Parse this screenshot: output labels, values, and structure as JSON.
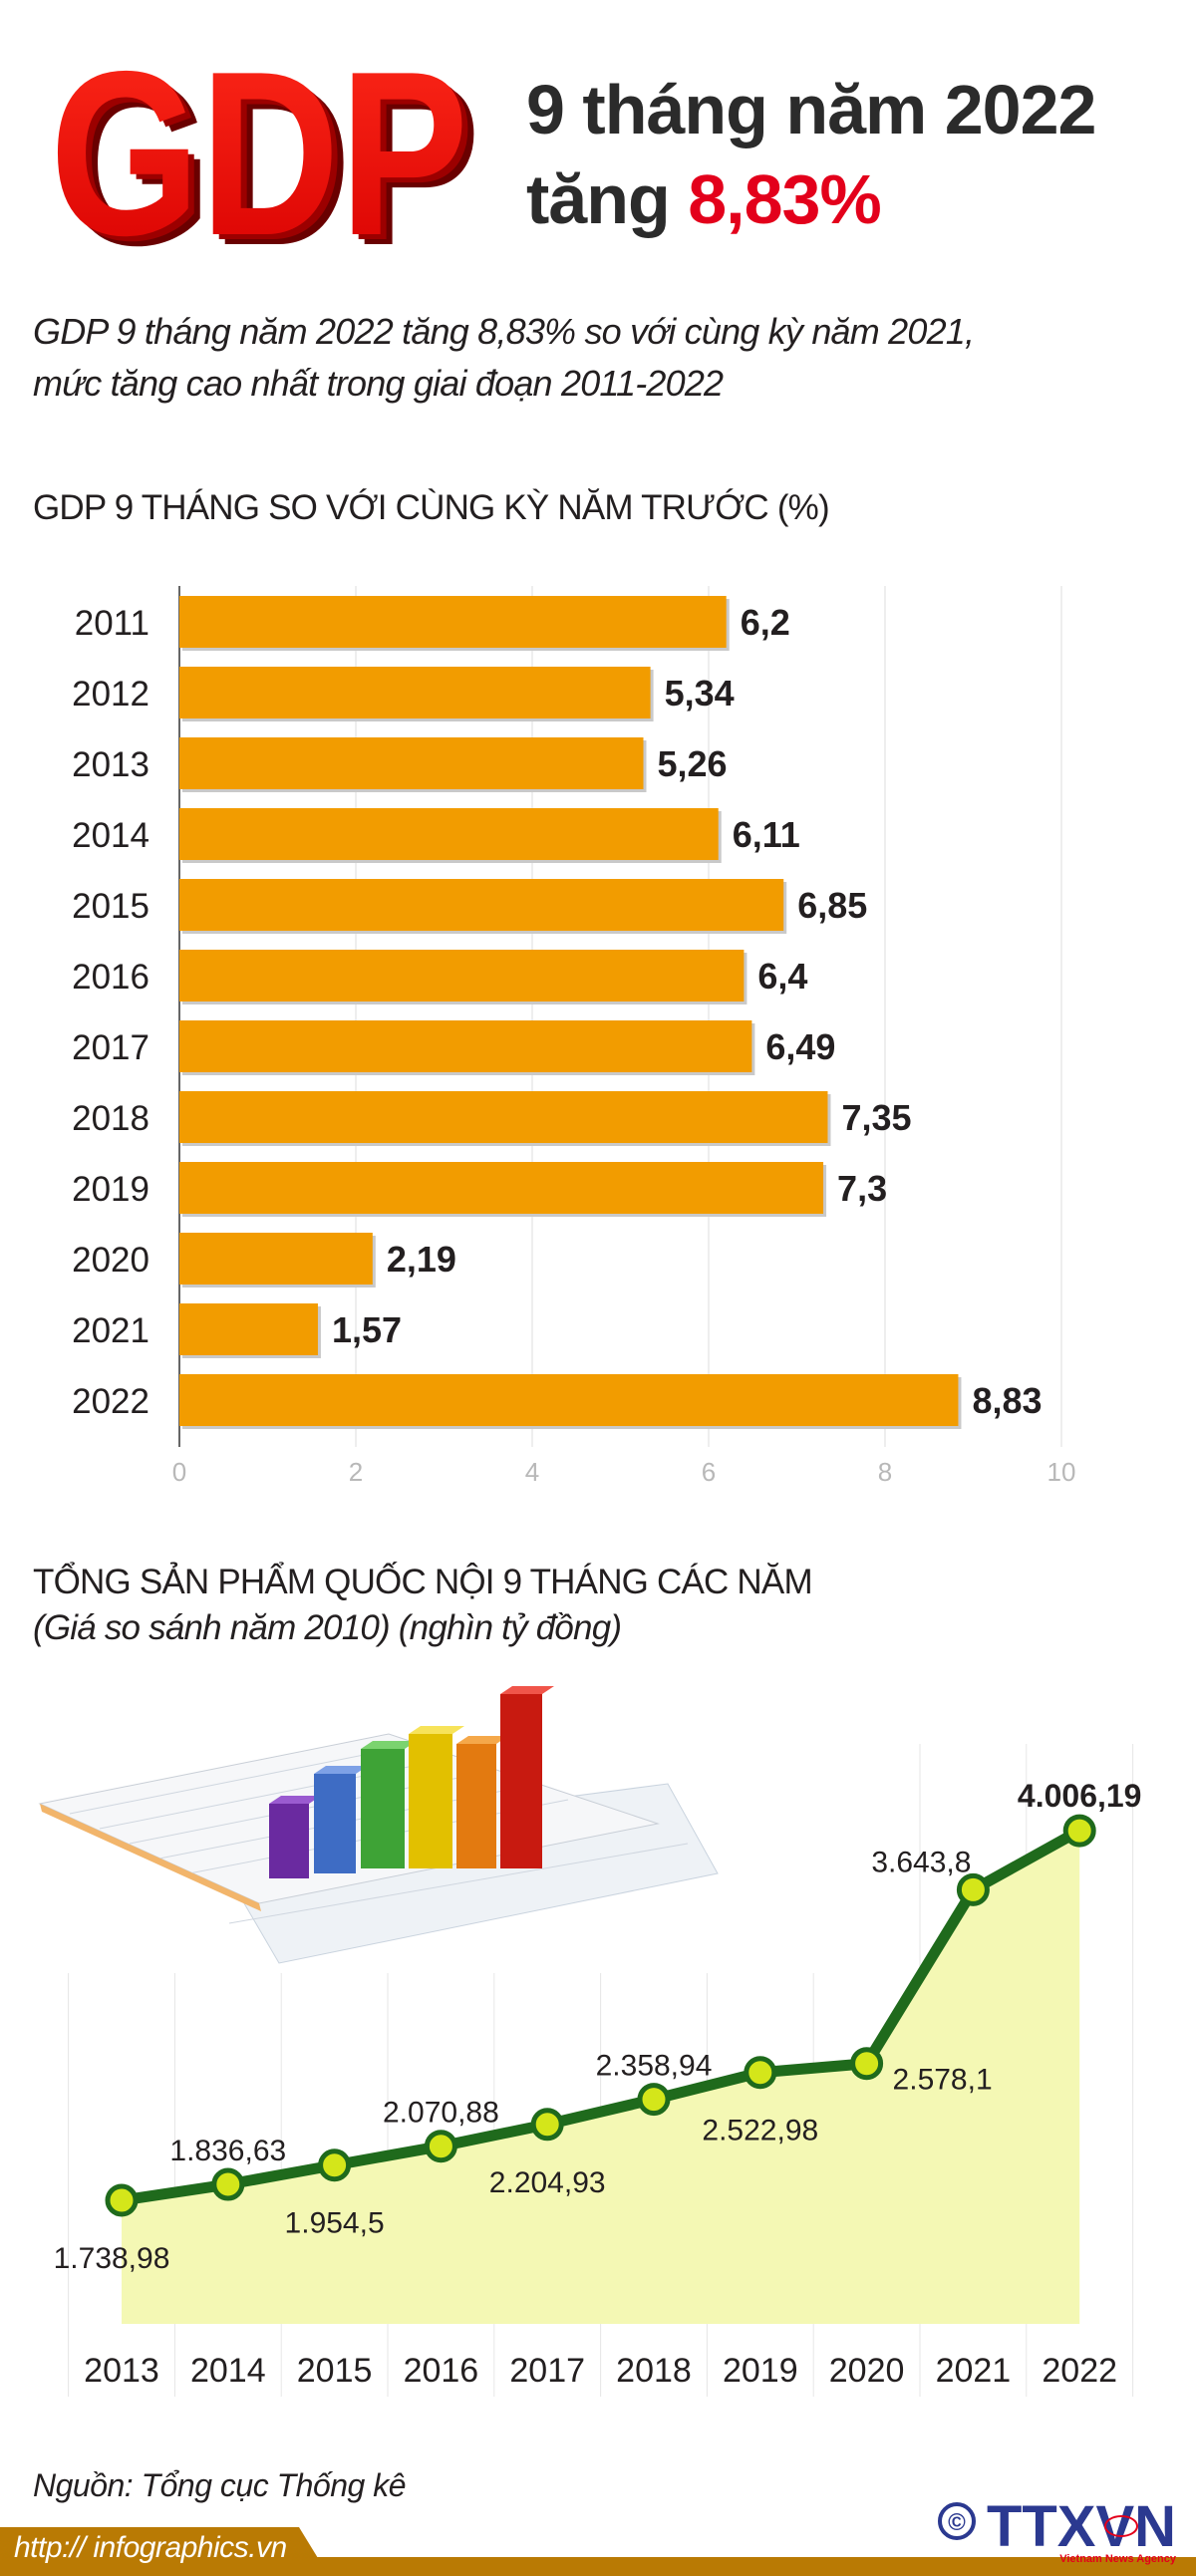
{
  "header": {
    "logo_text": "GDP",
    "title_line1": "9 tháng năm 2022",
    "title_line2_prefix": "tăng",
    "title_line2_highlight": "8,83%",
    "subtitle_line1": "GDP 9 tháng năm 2022 tăng 8,83% so với cùng kỳ năm 2021,",
    "subtitle_line2": "mức tăng cao nhất trong giai đoạn 2011-2022"
  },
  "colors": {
    "bar": "#f29c00",
    "highlight_red": "#e3001b",
    "line": "#1f6a1c",
    "marker": "#d4e61a",
    "area": "#f4f8b4",
    "footer": "#b97a04"
  },
  "chart_data": [
    {
      "type": "bar",
      "orientation": "horizontal",
      "title": "GDP 9 THÁNG SO VỚI CÙNG KỲ NĂM TRƯỚC (%)",
      "categories": [
        "2011",
        "2012",
        "2013",
        "2014",
        "2015",
        "2016",
        "2017",
        "2018",
        "2019",
        "2020",
        "2021",
        "2022"
      ],
      "values": [
        6.2,
        5.34,
        5.26,
        6.11,
        6.85,
        6.4,
        6.49,
        7.35,
        7.3,
        2.19,
        1.57,
        8.83
      ],
      "value_labels": [
        "6,2",
        "5,34",
        "5,26",
        "6,11",
        "6,85",
        "6,4",
        "6,49",
        "7,35",
        "7,3",
        "2,19",
        "1,57",
        "8,83"
      ],
      "xlim": [
        0,
        10
      ],
      "xticks": [
        "0",
        "2",
        "4",
        "6",
        "8",
        "10"
      ],
      "grid": true
    },
    {
      "type": "area",
      "title": "TỔNG SẢN PHẨM QUỐC NỘI 9 THÁNG CÁC NĂM",
      "subtitle": "(Giá so sánh năm 2010) (nghìn tỷ đồng)",
      "categories": [
        "2013",
        "2014",
        "2015",
        "2016",
        "2017",
        "2018",
        "2019",
        "2020",
        "2021",
        "2022"
      ],
      "values": [
        1738.98,
        1836.63,
        1954.5,
        2070.88,
        2204.93,
        2358.94,
        2522.98,
        2578.1,
        3643.8,
        4006.19
      ],
      "value_labels": [
        "1.738,98",
        "1.836,63",
        "1.954,5",
        "2.070,88",
        "2.204,93",
        "2.358,94",
        "2.522,98",
        "2.578,1",
        "3.643,8",
        "4.006,19"
      ],
      "markers": true
    }
  ],
  "footer": {
    "source": "Nguồn: Tổng cục Thống kê",
    "url": "http:// infographics.vn",
    "copyright_symbol": "©",
    "agency_logo": "TTXVN",
    "agency_tagline": "Vietnam News Agency"
  }
}
